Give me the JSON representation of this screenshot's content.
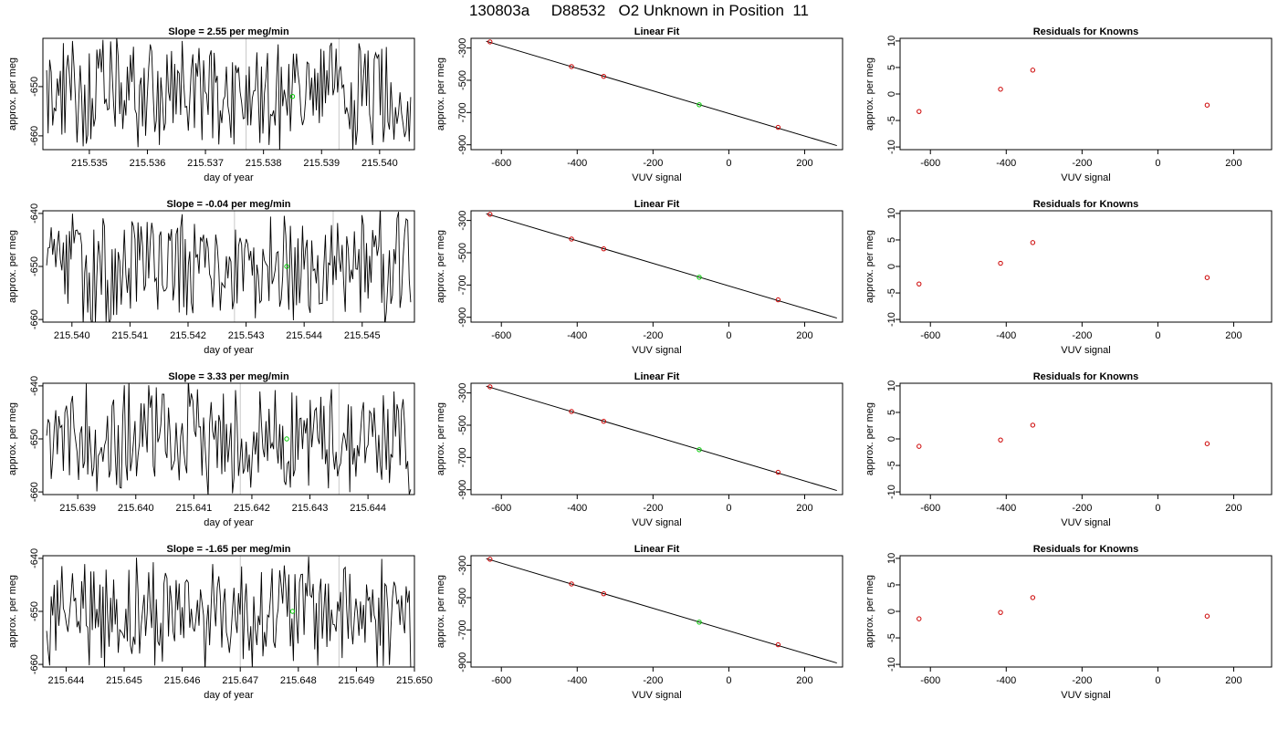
{
  "page": {
    "title": "130803a     D88532   O2 Unknown in Position  11"
  },
  "style": {
    "trace_color": "#000000",
    "known_point_color": "#cc0000",
    "unknown_point_color": "#00cc00",
    "marker_line_color": "#c8c8c8",
    "fit_line_color": "#000000"
  },
  "chart_data": [
    {
      "type": "line",
      "title": "Slope =  2.55  per meg/min",
      "xlabel": "day of year",
      "ylabel": "approx. per meg",
      "xlim": [
        215.5342,
        215.5406
      ],
      "ylim": [
        -662.8,
        -640.2
      ],
      "xticks": [
        215.535,
        215.536,
        215.537,
        215.538,
        215.539,
        215.54
      ],
      "xtick_labels": [
        "215.535",
        "215.536",
        "215.537",
        "215.538",
        "215.539",
        "215.540"
      ],
      "yticks": [
        -650,
        -660
      ],
      "ytick_labels": [
        "-650",
        "-660"
      ],
      "vlines": [
        215.5377,
        215.5393
      ],
      "unknown_point": {
        "x": 215.5385,
        "y": -652
      }
    },
    {
      "type": "scatter",
      "title": "Linear Fit",
      "xlabel": "VUV signal",
      "ylabel": "approx. per meg",
      "xlim": [
        -680,
        300
      ],
      "ylim": [
        -930,
        -240
      ],
      "xticks": [
        -600,
        -400,
        -200,
        0,
        200
      ],
      "xtick_labels": [
        "-600",
        "-400",
        "-200",
        "0",
        "200"
      ],
      "yticks": [
        -300,
        -500,
        -700,
        -900
      ],
      "ytick_labels": [
        "-300",
        "-500",
        "-700",
        "-900"
      ],
      "fit_line": {
        "x": [
          -640,
          285
        ],
        "y": [
          -258,
          -905
        ]
      },
      "knowns": {
        "x": [
          -630,
          -415,
          -330,
          130
        ],
        "y": [
          -262,
          -415,
          -476,
          -792
        ]
      },
      "unknown": {
        "x": -78,
        "y": -652
      }
    },
    {
      "type": "scatter",
      "title": "Residuals for Knowns",
      "xlabel": "VUV signal",
      "ylabel": "approx. per meg",
      "xlim": [
        -680,
        300
      ],
      "ylim": [
        -10.5,
        10.5
      ],
      "xticks": [
        -600,
        -400,
        -200,
        0,
        200
      ],
      "xtick_labels": [
        "-600",
        "-400",
        "-200",
        "0",
        "200"
      ],
      "yticks": [
        10,
        5,
        0,
        -5,
        -10
      ],
      "ytick_labels": [
        "10",
        "5",
        "0",
        "-5",
        "-10"
      ],
      "x": [
        -630,
        -415,
        -330,
        130
      ],
      "y": [
        -3.3,
        0.9,
        4.5,
        -2.1
      ]
    },
    {
      "type": "line",
      "title": "Slope =  -0.04  per meg/min",
      "xlabel": "day of year",
      "ylabel": "approx. per meg",
      "xlim": [
        215.5395,
        215.5459
      ],
      "ylim": [
        -660.5,
        -639.5
      ],
      "xticks": [
        215.54,
        215.541,
        215.542,
        215.543,
        215.544,
        215.545
      ],
      "xtick_labels": [
        "215.540",
        "215.541",
        "215.542",
        "215.543",
        "215.544",
        "215.545"
      ],
      "yticks": [
        -640,
        -650,
        -660
      ],
      "ytick_labels": [
        "-640",
        "-650",
        "-660"
      ],
      "vlines": [
        215.5428,
        215.5445
      ],
      "unknown_point": {
        "x": 215.5437,
        "y": -650
      }
    },
    {
      "type": "scatter",
      "title": "Linear Fit",
      "xlabel": "VUV signal",
      "ylabel": "approx. per meg",
      "xlim": [
        -680,
        300
      ],
      "ylim": [
        -930,
        -240
      ],
      "xticks": [
        -600,
        -400,
        -200,
        0,
        200
      ],
      "xtick_labels": [
        "-600",
        "-400",
        "-200",
        "0",
        "200"
      ],
      "yticks": [
        -300,
        -500,
        -700,
        -900
      ],
      "ytick_labels": [
        "-300",
        "-500",
        "-700",
        "-900"
      ],
      "fit_line": {
        "x": [
          -640,
          285
        ],
        "y": [
          -258,
          -905
        ]
      },
      "knowns": {
        "x": [
          -630,
          -415,
          -330,
          130
        ],
        "y": [
          -262,
          -415,
          -476,
          -792
        ]
      },
      "unknown": {
        "x": -78,
        "y": -652
      }
    },
    {
      "type": "scatter",
      "title": "Residuals for Knowns",
      "xlabel": "VUV signal",
      "ylabel": "approx. per meg",
      "xlim": [
        -680,
        300
      ],
      "ylim": [
        -10.5,
        10.5
      ],
      "xticks": [
        -600,
        -400,
        -200,
        0,
        200
      ],
      "xtick_labels": [
        "-600",
        "-400",
        "-200",
        "0",
        "200"
      ],
      "yticks": [
        10,
        5,
        0,
        -5,
        -10
      ],
      "ytick_labels": [
        "10",
        "5",
        "0",
        "-5",
        "-10"
      ],
      "x": [
        -630,
        -415,
        -330,
        130
      ],
      "y": [
        -3.3,
        0.6,
        4.5,
        -2.1
      ]
    },
    {
      "type": "line",
      "title": "Slope =  3.33  per meg/min",
      "xlabel": "day of year",
      "ylabel": "approx. per meg",
      "xlim": [
        215.6384,
        215.6448
      ],
      "ylim": [
        -660.5,
        -639.5
      ],
      "xticks": [
        215.639,
        215.64,
        215.641,
        215.642,
        215.643,
        215.644
      ],
      "xtick_labels": [
        "215.639",
        "215.640",
        "215.641",
        "215.642",
        "215.643",
        "215.644"
      ],
      "yticks": [
        -640,
        -650,
        -660
      ],
      "ytick_labels": [
        "-640",
        "-650",
        "-660"
      ],
      "vlines": [
        215.6418,
        215.6435
      ],
      "unknown_point": {
        "x": 215.6426,
        "y": -650
      }
    },
    {
      "type": "scatter",
      "title": "Linear Fit",
      "xlabel": "VUV signal",
      "ylabel": "approx. per meg",
      "xlim": [
        -680,
        300
      ],
      "ylim": [
        -930,
        -240
      ],
      "xticks": [
        -600,
        -400,
        -200,
        0,
        200
      ],
      "xtick_labels": [
        "-600",
        "-400",
        "-200",
        "0",
        "200"
      ],
      "yticks": [
        -300,
        -500,
        -700,
        -900
      ],
      "ytick_labels": [
        "-300",
        "-500",
        "-700",
        "-900"
      ],
      "fit_line": {
        "x": [
          -640,
          285
        ],
        "y": [
          -258,
          -905
        ]
      },
      "knowns": {
        "x": [
          -630,
          -415,
          -330,
          130
        ],
        "y": [
          -262,
          -415,
          -476,
          -792
        ]
      },
      "unknown": {
        "x": -78,
        "y": -652
      }
    },
    {
      "type": "scatter",
      "title": "Residuals for Knowns",
      "xlabel": "VUV signal",
      "ylabel": "approx. per meg",
      "xlim": [
        -680,
        300
      ],
      "ylim": [
        -10.5,
        10.5
      ],
      "xticks": [
        -600,
        -400,
        -200,
        0,
        200
      ],
      "xtick_labels": [
        "-600",
        "-400",
        "-200",
        "0",
        "200"
      ],
      "yticks": [
        10,
        5,
        0,
        -5,
        -10
      ],
      "ytick_labels": [
        "10",
        "5",
        "0",
        "-5",
        "-10"
      ],
      "x": [
        -630,
        -415,
        -330,
        130
      ],
      "y": [
        -1.4,
        -0.2,
        2.6,
        -0.9
      ]
    },
    {
      "type": "line",
      "title": "Slope =  -1.65  per meg/min",
      "xlabel": "day of year",
      "ylabel": "approx. per meg",
      "xlim": [
        215.6436,
        215.65
      ],
      "ylim": [
        -660.5,
        -639.5
      ],
      "xticks": [
        215.644,
        215.645,
        215.646,
        215.647,
        215.648,
        215.649,
        215.65
      ],
      "xtick_labels": [
        "215.644",
        "215.645",
        "215.646",
        "215.647",
        "215.648",
        "215.649",
        "215.650"
      ],
      "yticks": [
        -640,
        -650,
        -660
      ],
      "ytick_labels": [
        "-640",
        "-650",
        "-660"
      ],
      "vlines": [
        215.647,
        215.6487
      ],
      "unknown_point": {
        "x": 215.6479,
        "y": -650
      }
    },
    {
      "type": "scatter",
      "title": "Linear Fit",
      "xlabel": "VUV signal",
      "ylabel": "approx. per meg",
      "xlim": [
        -680,
        300
      ],
      "ylim": [
        -930,
        -240
      ],
      "xticks": [
        -600,
        -400,
        -200,
        0,
        200
      ],
      "xtick_labels": [
        "-600",
        "-400",
        "-200",
        "0",
        "200"
      ],
      "yticks": [
        -300,
        -500,
        -700,
        -900
      ],
      "ytick_labels": [
        "-300",
        "-500",
        "-700",
        "-900"
      ],
      "fit_line": {
        "x": [
          -640,
          285
        ],
        "y": [
          -258,
          -905
        ]
      },
      "knowns": {
        "x": [
          -630,
          -415,
          -330,
          130
        ],
        "y": [
          -262,
          -415,
          -476,
          -792
        ]
      },
      "unknown": {
        "x": -78,
        "y": -652
      }
    },
    {
      "type": "scatter",
      "title": "Residuals for Knowns",
      "xlabel": "VUV signal",
      "ylabel": "approx. per meg",
      "xlim": [
        -680,
        300
      ],
      "ylim": [
        -10.5,
        10.5
      ],
      "xticks": [
        -600,
        -400,
        -200,
        0,
        200
      ],
      "xtick_labels": [
        "-600",
        "-400",
        "-200",
        "0",
        "200"
      ],
      "yticks": [
        10,
        5,
        0,
        -5,
        -10
      ],
      "ytick_labels": [
        "10",
        "5",
        "0",
        "-5",
        "-10"
      ],
      "x": [
        -630,
        -415,
        -330,
        130
      ],
      "y": [
        -1.4,
        -0.2,
        2.6,
        -0.9
      ]
    }
  ]
}
